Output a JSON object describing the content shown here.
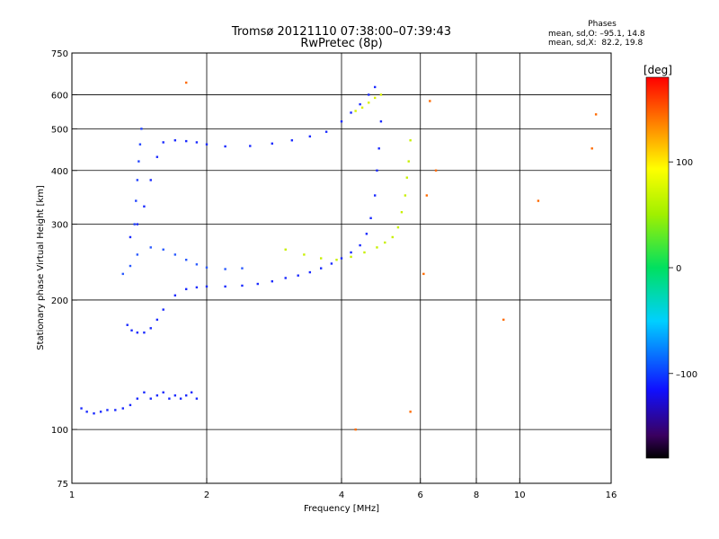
{
  "header": {
    "title_line1": "Tromsø 20121110 07:38:00–07:39:43",
    "title_line2": "RwPretec (8p)"
  },
  "info": {
    "heading": "Phases",
    "line_o": "mean, sd,O: –95.1, 14.8",
    "line_x": "mean, sd,X:  82.2, 19.8"
  },
  "chart_data": {
    "type": "scatter",
    "xlabel": "Frequency [MHz]",
    "ylabel": "Stationary phase Virtual Height [km]",
    "x_scale": "log",
    "y_scale": "log",
    "xlim": [
      1,
      16
    ],
    "ylim": [
      75,
      750
    ],
    "x_ticks": [
      1,
      2,
      4,
      6,
      8,
      10,
      16
    ],
    "x_tick_labels": [
      "1",
      "2",
      "4",
      "6",
      "8",
      "10",
      "16"
    ],
    "y_ticks": [
      75,
      100,
      200,
      300,
      400,
      500,
      600,
      750
    ],
    "y_tick_labels": [
      "75",
      "100",
      "200",
      "300",
      "400",
      "500",
      "600",
      "750"
    ],
    "grid": true,
    "colorbar": {
      "label": "[deg]",
      "range": [
        -180,
        180
      ],
      "ticks": [
        100,
        0,
        -100
      ],
      "tick_labels": [
        "100",
        "0",
        "–100"
      ]
    },
    "series": [
      {
        "role": "O-mode lower trace",
        "color": "#1a2aff",
        "phase_deg": -95,
        "points": [
          [
            1.05,
            112
          ],
          [
            1.08,
            110
          ],
          [
            1.12,
            109
          ],
          [
            1.16,
            110
          ],
          [
            1.2,
            111
          ],
          [
            1.25,
            111
          ],
          [
            1.3,
            112
          ],
          [
            1.35,
            114
          ],
          [
            1.4,
            118
          ],
          [
            1.45,
            122
          ],
          [
            1.5,
            118
          ],
          [
            1.55,
            120
          ],
          [
            1.6,
            122
          ],
          [
            1.65,
            118
          ],
          [
            1.7,
            120
          ],
          [
            1.75,
            118
          ],
          [
            1.8,
            120
          ],
          [
            1.85,
            122
          ],
          [
            1.9,
            118
          ]
        ]
      },
      {
        "role": "O-mode F-layer band A",
        "color": "#1a2aff",
        "phase_deg": -95,
        "points": [
          [
            1.33,
            175
          ],
          [
            1.36,
            170
          ],
          [
            1.4,
            168
          ],
          [
            1.45,
            168
          ],
          [
            1.5,
            172
          ],
          [
            1.55,
            180
          ],
          [
            1.6,
            190
          ],
          [
            1.7,
            205
          ],
          [
            1.8,
            212
          ],
          [
            1.9,
            214
          ],
          [
            2.0,
            215
          ],
          [
            2.2,
            215
          ],
          [
            2.4,
            216
          ],
          [
            2.6,
            218
          ],
          [
            2.8,
            221
          ],
          [
            3.0,
            225
          ],
          [
            3.2,
            228
          ],
          [
            3.4,
            232
          ],
          [
            3.6,
            237
          ],
          [
            3.8,
            243
          ],
          [
            4.0,
            250
          ],
          [
            4.2,
            258
          ],
          [
            4.4,
            268
          ],
          [
            4.55,
            285
          ],
          [
            4.65,
            310
          ],
          [
            4.75,
            350
          ],
          [
            4.8,
            400
          ],
          [
            4.85,
            450
          ],
          [
            4.9,
            520
          ]
        ]
      },
      {
        "role": "O-mode F-layer band B",
        "color": "#2a5aff",
        "phase_deg": -80,
        "points": [
          [
            1.3,
            230
          ],
          [
            1.35,
            240
          ],
          [
            1.4,
            255
          ],
          [
            1.5,
            265
          ],
          [
            1.6,
            262
          ],
          [
            1.7,
            255
          ],
          [
            1.8,
            248
          ],
          [
            1.9,
            242
          ],
          [
            2.0,
            238
          ],
          [
            2.2,
            236
          ],
          [
            2.4,
            237
          ]
        ]
      },
      {
        "role": "O-mode upper band",
        "color": "#1a2aff",
        "phase_deg": -95,
        "points": [
          [
            1.35,
            280
          ],
          [
            1.4,
            300
          ],
          [
            1.45,
            330
          ],
          [
            1.5,
            380
          ],
          [
            1.55,
            430
          ],
          [
            1.6,
            465
          ],
          [
            1.7,
            470
          ],
          [
            1.8,
            468
          ],
          [
            1.9,
            465
          ],
          [
            2.0,
            460
          ],
          [
            2.2,
            455
          ],
          [
            2.5,
            456
          ],
          [
            2.8,
            462
          ],
          [
            3.1,
            470
          ],
          [
            3.4,
            480
          ],
          [
            3.7,
            492
          ],
          [
            4.0,
            520
          ],
          [
            4.2,
            545
          ],
          [
            4.4,
            570
          ],
          [
            4.6,
            600
          ],
          [
            4.75,
            625
          ]
        ]
      },
      {
        "role": "O-mode spur",
        "color": "#2244ff",
        "phase_deg": -95,
        "points": [
          [
            1.38,
            300
          ],
          [
            1.39,
            340
          ],
          [
            1.4,
            380
          ],
          [
            1.41,
            420
          ],
          [
            1.42,
            460
          ],
          [
            1.43,
            500
          ]
        ]
      },
      {
        "role": "X-mode trace",
        "color": "#c8f000",
        "phase_deg": 82,
        "points": [
          [
            3.0,
            262
          ],
          [
            3.3,
            255
          ],
          [
            3.6,
            250
          ],
          [
            3.9,
            248
          ],
          [
            4.2,
            252
          ],
          [
            4.5,
            258
          ],
          [
            4.8,
            265
          ],
          [
            5.0,
            272
          ],
          [
            5.2,
            280
          ],
          [
            5.35,
            295
          ],
          [
            5.45,
            320
          ],
          [
            5.55,
            350
          ],
          [
            5.6,
            385
          ],
          [
            5.65,
            420
          ],
          [
            5.7,
            470
          ]
        ]
      },
      {
        "role": "X-mode upper fragment",
        "color": "#d8f000",
        "phase_deg": 90,
        "points": [
          [
            4.3,
            550
          ],
          [
            4.45,
            560
          ],
          [
            4.6,
            575
          ],
          [
            4.75,
            590
          ],
          [
            4.9,
            600
          ]
        ]
      },
      {
        "role": "Scattered echoes",
        "color": "#ff6a00",
        "phase_deg": 140,
        "points": [
          [
            6.3,
            580
          ],
          [
            6.5,
            400
          ],
          [
            6.2,
            350
          ],
          [
            11.0,
            340
          ],
          [
            14.5,
            450
          ],
          [
            14.8,
            540
          ],
          [
            9.2,
            180
          ],
          [
            6.1,
            230
          ],
          [
            5.7,
            110
          ],
          [
            1.8,
            640
          ],
          [
            4.3,
            100
          ]
        ]
      }
    ]
  }
}
